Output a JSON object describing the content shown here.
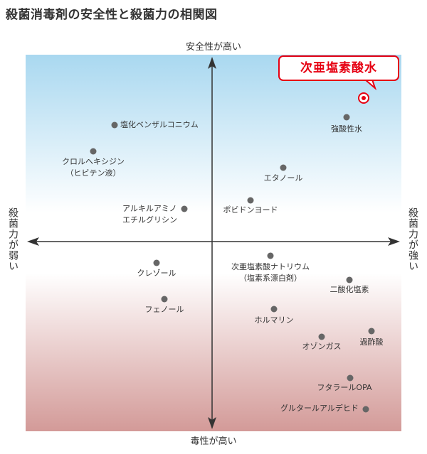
{
  "title": "殺菌消毒剤の安全性と殺菌力の相関図",
  "axes": {
    "top": "安全性が高い",
    "bottom": "毒性が高い",
    "left": "殺菌力が弱い",
    "right": "殺菌力が強い"
  },
  "highlight": {
    "label": "次亜塩素酸水",
    "color": "#e60012"
  },
  "points": [
    {
      "label": "強酸性水"
    },
    {
      "label": "塩化ベンザルコニウム"
    },
    {
      "label_line1": "クロルヘキシジン",
      "label_line2": "（ヒビテン液）"
    },
    {
      "label": "エタノール"
    },
    {
      "label": "ポビドンヨード"
    },
    {
      "label_line1": "アルキルアミノ",
      "label_line2": "エチルグリシン"
    },
    {
      "label_line1": "次亜塩素酸ナトリウム",
      "label_line2": "（塩素系漂白剤）"
    },
    {
      "label": "クレゾール"
    },
    {
      "label": "二酸化塩素"
    },
    {
      "label": "フェノール"
    },
    {
      "label": "ホルマリン"
    },
    {
      "label": "オゾンガス"
    },
    {
      "label": "過酢酸"
    },
    {
      "label": "フタラールOPA"
    },
    {
      "label": "グルタールアルデヒド"
    }
  ],
  "colors": {
    "gradient_top": "#a9d8f0",
    "gradient_bottom": "#d39a98",
    "point": "#666666",
    "axis": "#333333"
  }
}
